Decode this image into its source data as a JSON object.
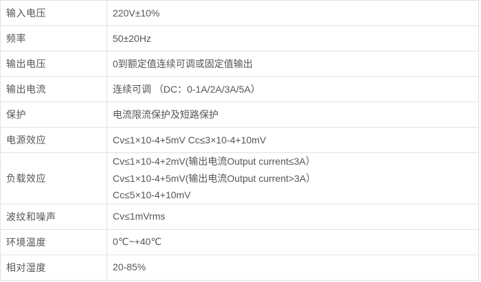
{
  "page": {
    "kind": "specification-table",
    "background_color": "#ffffff",
    "border_color": "#e1e1e1",
    "text_color": "#555555"
  },
  "table": {
    "rows": [
      {
        "label": "输入电压",
        "values": [
          "220V±10%"
        ]
      },
      {
        "label": "频率",
        "values": [
          "50±20Hz"
        ]
      },
      {
        "label": "输出电压",
        "values": [
          "0到额定值连续可调或固定值输出"
        ]
      },
      {
        "label": "输出电流",
        "values": [
          "连续可调 （DC：0-1A/2A/3A/5A）"
        ]
      },
      {
        "label": "保护",
        "values": [
          "电流限流保护及短路保护"
        ]
      },
      {
        "label": "电源效应",
        "values": [
          "Cv≤1×10-4+5mV Cc≤3×10-4+10mV"
        ]
      },
      {
        "label": "负载效应",
        "values": [
          "Cv≤1×10-4+2mV(输出电流Output current≤3A）",
          "Cv≤1×10-4+5mV(输出电流Output current>3A）",
          "Cc≤5×10-4+10mV"
        ]
      },
      {
        "label": "波纹和噪声",
        "values": [
          "Cv≤1mVrms"
        ]
      },
      {
        "label": "环境温度",
        "values": [
          "0℃~+40℃"
        ]
      },
      {
        "label": "相对湿度",
        "values": [
          "20-85%"
        ]
      }
    ]
  }
}
